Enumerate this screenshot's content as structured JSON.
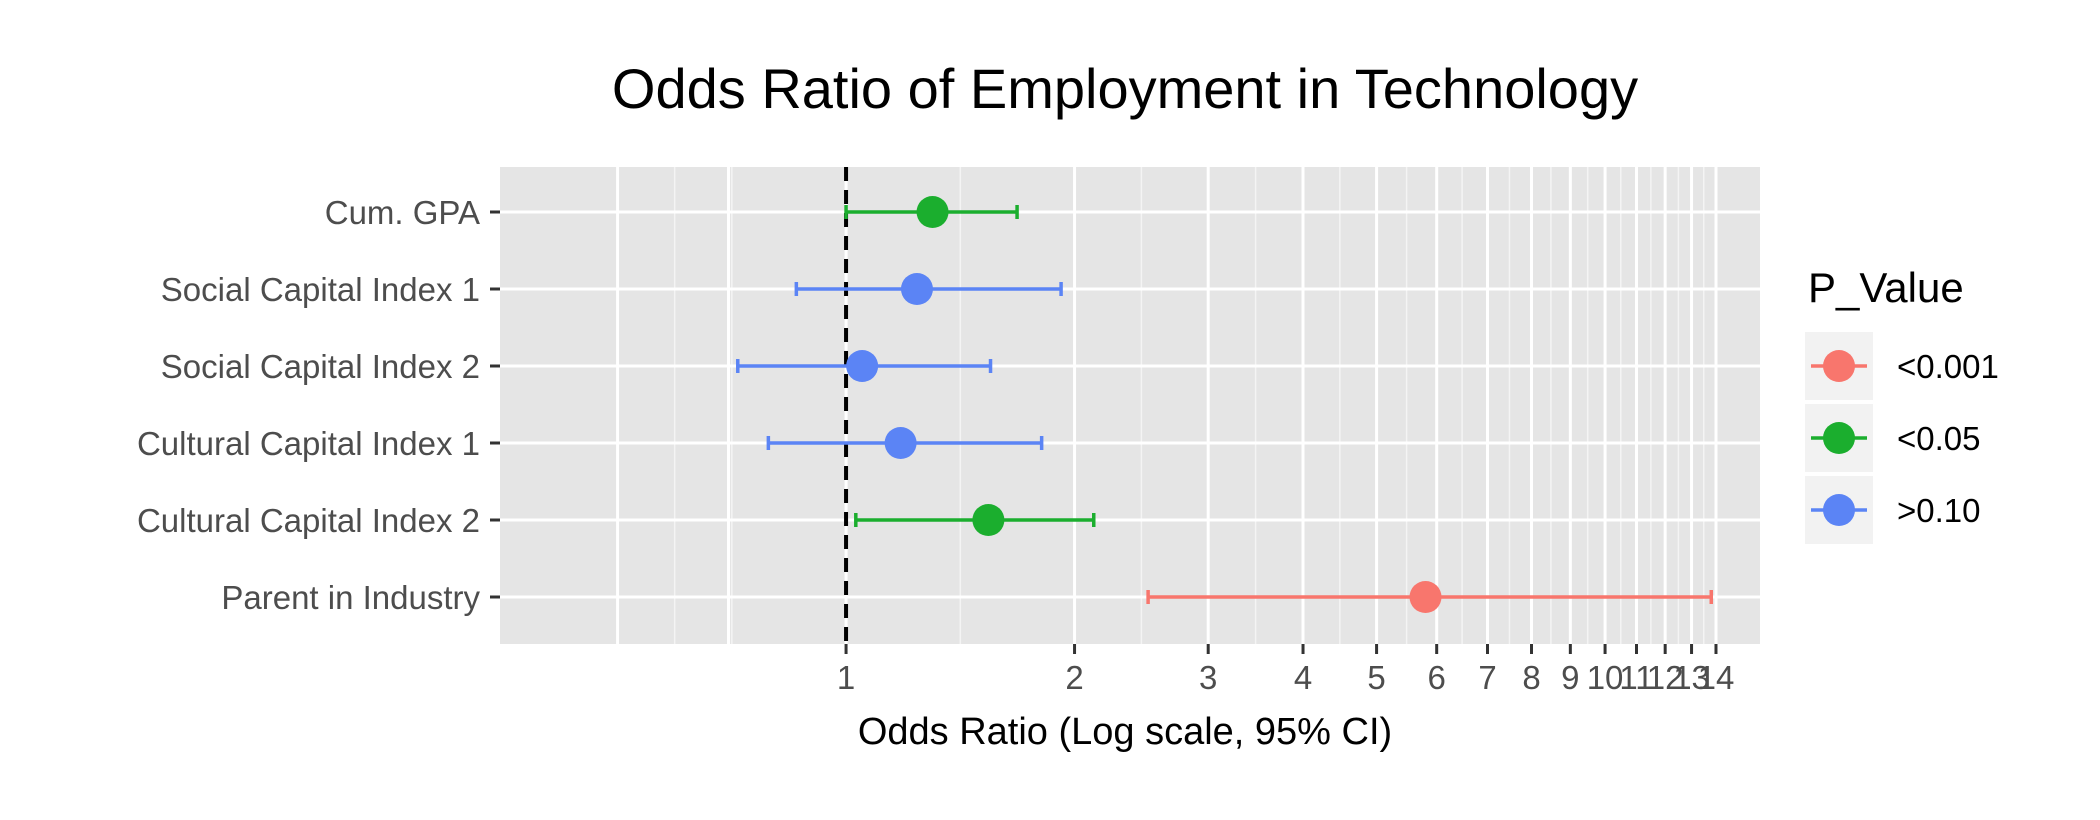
{
  "chart_data": {
    "type": "scatter",
    "subtype": "forest-plot",
    "title": "Odds Ratio of Employment in Technology",
    "xlabel": "Odds Ratio (Log scale, 95% CI)",
    "ylabel": "",
    "x_scale": "log",
    "xlim": [
      0.35,
      16
    ],
    "grid": true,
    "reference_line": 1,
    "x_ticks": [
      1,
      2,
      3,
      4,
      5,
      6,
      7,
      8,
      9,
      10,
      11,
      12,
      13,
      14
    ],
    "x_tick_labels": [
      "1",
      "2",
      "3",
      "4",
      "5",
      "6",
      "7",
      "8",
      "9",
      "10",
      "11",
      "12",
      "13",
      "14"
    ],
    "categories": [
      "Cum. GPA",
      "Social Capital Index 1",
      "Social Capital Index 2",
      "Cultural Capital Index 1",
      "Cultural Capital Index 2",
      "Parent in Industry"
    ],
    "legend": {
      "title": "P_Value",
      "placement": "right",
      "entries": [
        {
          "label": "<0.001",
          "color": "#F8766D"
        },
        {
          "label": "<0.05",
          "color": "#1BAE2E"
        },
        {
          "label": ">0.10",
          "color": "#5B84F5"
        }
      ]
    },
    "points": [
      {
        "label": "Cum. GPA",
        "odds_ratio": 1.3,
        "ci_low": 1.0,
        "ci_high": 1.68,
        "p_value": "<0.05"
      },
      {
        "label": "Social Capital Index 1",
        "odds_ratio": 1.24,
        "ci_low": 0.86,
        "ci_high": 1.92,
        "p_value": ">0.10"
      },
      {
        "label": "Social Capital Index 2",
        "odds_ratio": 1.05,
        "ci_low": 0.72,
        "ci_high": 1.55,
        "p_value": ">0.10"
      },
      {
        "label": "Cultural Capital Index 1",
        "odds_ratio": 1.18,
        "ci_low": 0.79,
        "ci_high": 1.81,
        "p_value": ">0.10"
      },
      {
        "label": "Cultural Capital Index 2",
        "odds_ratio": 1.54,
        "ci_low": 1.03,
        "ci_high": 2.12,
        "p_value": "<0.05"
      },
      {
        "label": "Parent in Industry",
        "odds_ratio": 5.8,
        "ci_low": 2.5,
        "ci_high": 13.8,
        "p_value": "<0.001"
      }
    ]
  }
}
